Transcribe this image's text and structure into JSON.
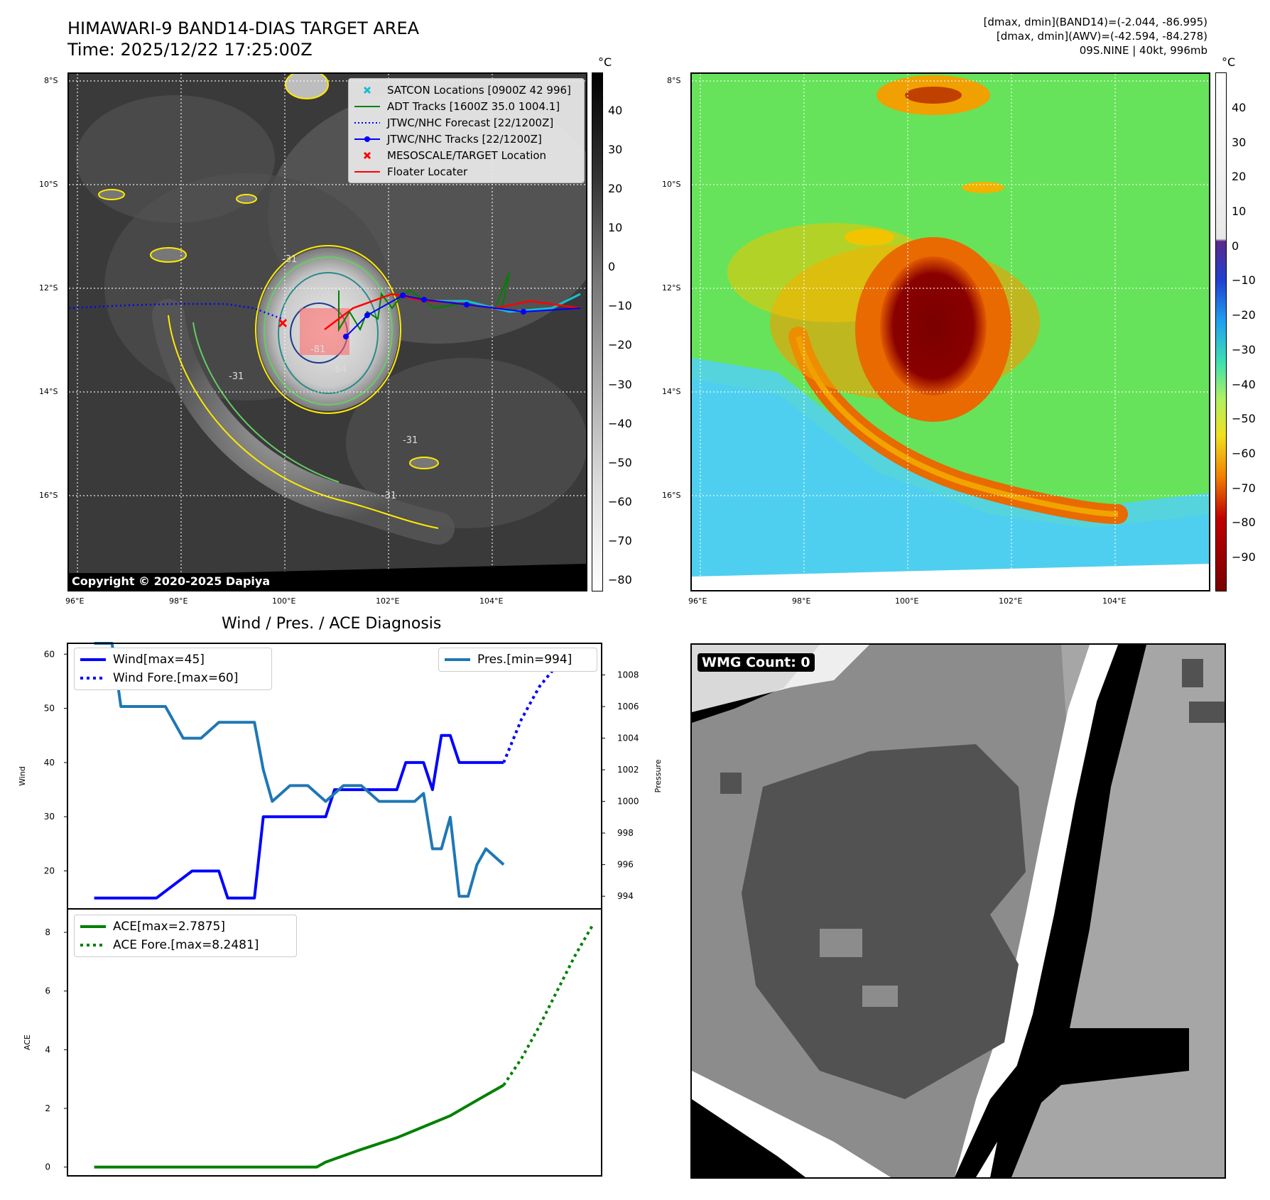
{
  "header": {
    "title_line1": "HIMAWARI-9 BAND14-DIAS TARGET AREA",
    "title_line2": "Time: 2025/12/22 17:25:00Z",
    "meta_line1": "[dmax, dmin](BAND14)=(-2.044, -86.995)",
    "meta_line2": "[dmax, dmin](AWV)=(-42.594, -84.278)",
    "meta_line3": "09S.NINE | 40kt, 996mb"
  },
  "maps": {
    "lat_labels": [
      "8°S",
      "10°S",
      "12°S",
      "14°S",
      "16°S"
    ],
    "lon_labels": [
      "96°E",
      "98°E",
      "100°E",
      "102°E",
      "104°E"
    ],
    "contour_labels": [
      "-31",
      "-64",
      "-81",
      "-31",
      "-31",
      "-31"
    ],
    "colorbar_unit": "°C",
    "ir_colorbar_ticks": [
      "40",
      "30",
      "20",
      "10",
      "0",
      "−10",
      "−20",
      "−30",
      "−40",
      "−50",
      "−60",
      "−70",
      "−80"
    ],
    "dias_colorbar_ticks": [
      "40",
      "30",
      "20",
      "10",
      "0",
      "−10",
      "−20",
      "−30",
      "−40",
      "−50",
      "−60",
      "−70",
      "−80",
      "−90"
    ],
    "copyright": "Copyright © 2020-2025 Dapiya",
    "colors": {
      "satcon": "#17becf",
      "adt": "#008000",
      "jtwc_forecast": "#0000ff",
      "jtwc_track": "#0000ff",
      "target": "#ff0000",
      "floater": "#ff0000",
      "contour_yellow": "#ffea00",
      "contour_green": "#66cc66",
      "contour_teal": "#2a8a8a"
    },
    "legend": [
      {
        "label": "SATCON Locations [0900Z 42 996]",
        "icon": "x-marker",
        "color": "#17becf"
      },
      {
        "label": "ADT Tracks [1600Z 35.0 1004.1]",
        "icon": "solid-line",
        "color": "#008000"
      },
      {
        "label": "JTWC/NHC Forecast [22/1200Z]",
        "icon": "dotted-line",
        "color": "#0000ff"
      },
      {
        "label": "JTWC/NHC Tracks [22/1200Z]",
        "icon": "line-dot",
        "color": "#0000ff"
      },
      {
        "label": "MESOSCALE/TARGET Location",
        "icon": "x-marker",
        "color": "#ff0000"
      },
      {
        "label": "Floater Locater",
        "icon": "solid-line",
        "color": "#ff0000"
      }
    ]
  },
  "chart_data": [
    {
      "type": "line",
      "title": "Wind / Pres. / ACE Diagnosis",
      "ylabel": "Wind",
      "y2label": "Pressure",
      "ylim": [
        13,
        62
      ],
      "y2lim": [
        993.2,
        1010
      ],
      "yticks": [
        20,
        30,
        40,
        50,
        60
      ],
      "y2ticks": [
        994,
        996,
        998,
        1000,
        1002,
        1004,
        1006,
        1008
      ],
      "xlim": [
        -1.5,
        28.5
      ],
      "legend_left": [
        "Wind[max=45]",
        "Wind Fore.[max=60]"
      ],
      "legend_right": [
        "Pres.[min=994]"
      ],
      "series": [
        {
          "name": "Wind[max=45]",
          "axis": "left",
          "color": "#0000ff",
          "style": "solid",
          "x": [
            0,
            3,
            3.5,
            5.5,
            6,
            7,
            7.5,
            9,
            9.5,
            12,
            13,
            13.5,
            14.5,
            15,
            15.5,
            17,
            17.5,
            18.5,
            19,
            19.5,
            20,
            20.5,
            21,
            22,
            23
          ],
          "y": [
            15,
            15,
            15,
            20,
            20,
            20,
            15,
            15,
            30,
            30,
            30,
            35,
            35,
            35,
            35,
            35,
            40,
            40,
            35,
            45,
            45,
            40,
            40,
            40,
            40
          ]
        },
        {
          "name": "Wind Fore.[max=60]",
          "axis": "left",
          "color": "#0000ff",
          "style": "dotted",
          "x": [
            23,
            24,
            25,
            26,
            27,
            28
          ],
          "y": [
            40,
            48,
            54,
            58,
            60,
            60
          ]
        },
        {
          "name": "Pres.[min=994]",
          "axis": "right",
          "color": "#1f77b4",
          "style": "solid",
          "x": [
            0,
            1,
            1.5,
            2,
            3,
            4,
            5,
            6,
            7,
            8,
            9,
            9.5,
            10,
            11,
            12,
            13,
            14,
            15,
            16,
            17,
            18,
            18.5,
            19,
            19.5,
            20,
            20.5,
            21,
            21.5,
            22,
            23
          ],
          "y": [
            1010,
            1010,
            1006,
            1006,
            1006,
            1006,
            1004,
            1004,
            1005,
            1005,
            1005,
            1002,
            1000,
            1001,
            1001,
            1000,
            1001,
            1001,
            1000,
            1000,
            1000,
            1000.5,
            997,
            997,
            999,
            994,
            994,
            996,
            997,
            996
          ]
        }
      ]
    },
    {
      "type": "line",
      "ylabel": "ACE",
      "ylim": [
        -0.3,
        8.8
      ],
      "yticks": [
        0,
        2,
        4,
        6,
        8
      ],
      "xlim": [
        -1.5,
        28.5
      ],
      "legend": [
        "ACE[max=2.7875]",
        "ACE Fore.[max=8.2481]"
      ],
      "series": [
        {
          "name": "ACE[max=2.7875]",
          "color": "#008000",
          "style": "solid",
          "x": [
            0,
            5,
            10,
            12.5,
            13,
            15,
            17,
            18,
            19,
            20,
            21,
            22,
            23
          ],
          "y": [
            0,
            0,
            0,
            0,
            0.17,
            0.6,
            1.0,
            1.25,
            1.5,
            1.75,
            2.1,
            2.45,
            2.79
          ]
        },
        {
          "name": "ACE Fore.[max=8.2481]",
          "color": "#008000",
          "style": "dotted",
          "x": [
            23,
            24,
            25,
            26,
            27,
            28
          ],
          "y": [
            2.79,
            3.7,
            4.8,
            6.0,
            7.2,
            8.25
          ]
        }
      ]
    }
  ],
  "wmg": {
    "count_label": "WMG Count: 0"
  }
}
